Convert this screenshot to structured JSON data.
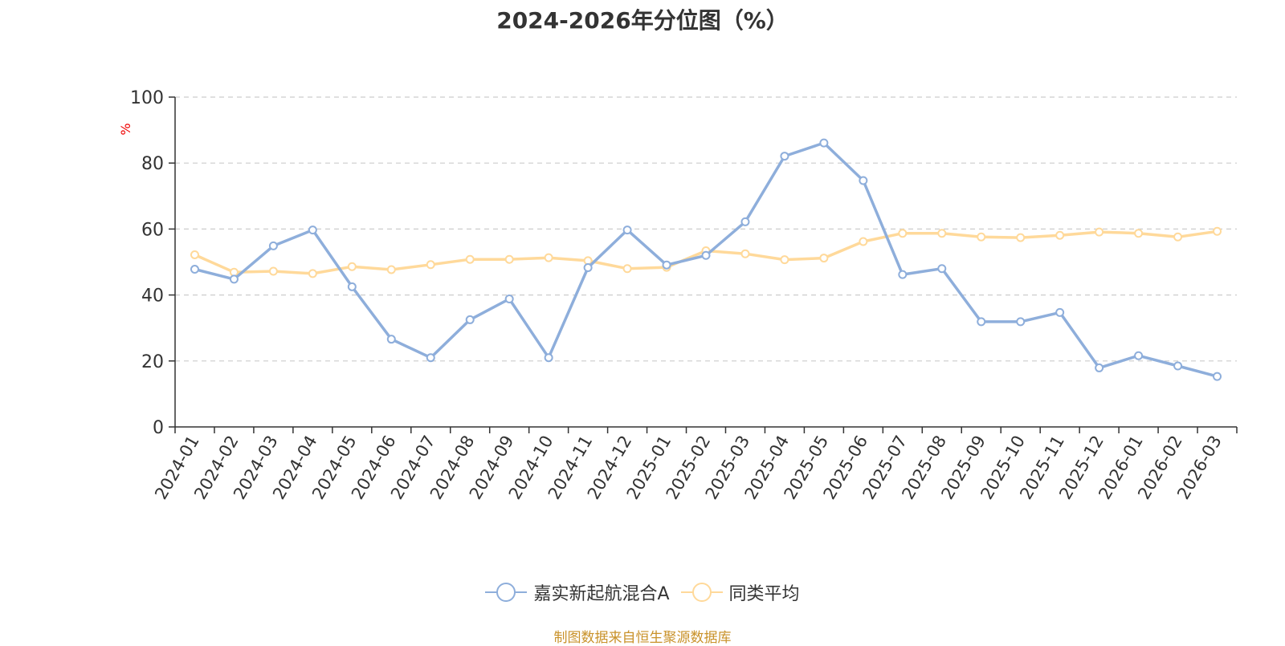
{
  "title": "2024-2026年分位图（%）",
  "footer": "制图数据来自恒生聚源数据库",
  "colors": {
    "series_a": "#8eaedb",
    "series_b": "#ffd99a",
    "axis": "#333333",
    "grid": "#cccccc",
    "ylabel": "#ee0000",
    "footer": "#c9922a"
  },
  "chart_data": {
    "type": "line",
    "ylabel": "%",
    "ylim": [
      0,
      100
    ],
    "yticks": [
      0,
      20,
      40,
      60,
      80,
      100
    ],
    "grid": true,
    "legend_position": "bottom-center",
    "categories": [
      "2024-01",
      "2024-02",
      "2024-03",
      "2024-04",
      "2024-05",
      "2024-06",
      "2024-07",
      "2024-08",
      "2024-09",
      "2024-10",
      "2024-11",
      "2024-12",
      "2025-01",
      "2025-02",
      "2025-03",
      "2025-04",
      "2025-05",
      "2025-06",
      "2025-07",
      "2025-08",
      "2025-09",
      "2025-10",
      "2025-11",
      "2025-12",
      "2026-01",
      "2026-02",
      "2026-03"
    ],
    "series": [
      {
        "name": "嘉实新起航混合A",
        "values": [
          47.8,
          44.8,
          54.9,
          59.7,
          42.5,
          26.6,
          21.0,
          32.5,
          38.8,
          21.0,
          48.3,
          59.7,
          49.1,
          52.0,
          62.2,
          82.1,
          86.1,
          74.7,
          46.2,
          48.0,
          31.9,
          31.9,
          34.7,
          17.9,
          21.6,
          18.5,
          15.3
        ]
      },
      {
        "name": "同类平均",
        "values": [
          52.2,
          46.9,
          47.2,
          46.5,
          48.6,
          47.7,
          49.2,
          50.8,
          50.8,
          51.3,
          50.4,
          48.0,
          48.4,
          53.4,
          52.5,
          50.7,
          51.2,
          56.2,
          58.7,
          58.7,
          57.6,
          57.4,
          58.1,
          59.1,
          58.7,
          57.6,
          59.3
        ]
      }
    ]
  }
}
